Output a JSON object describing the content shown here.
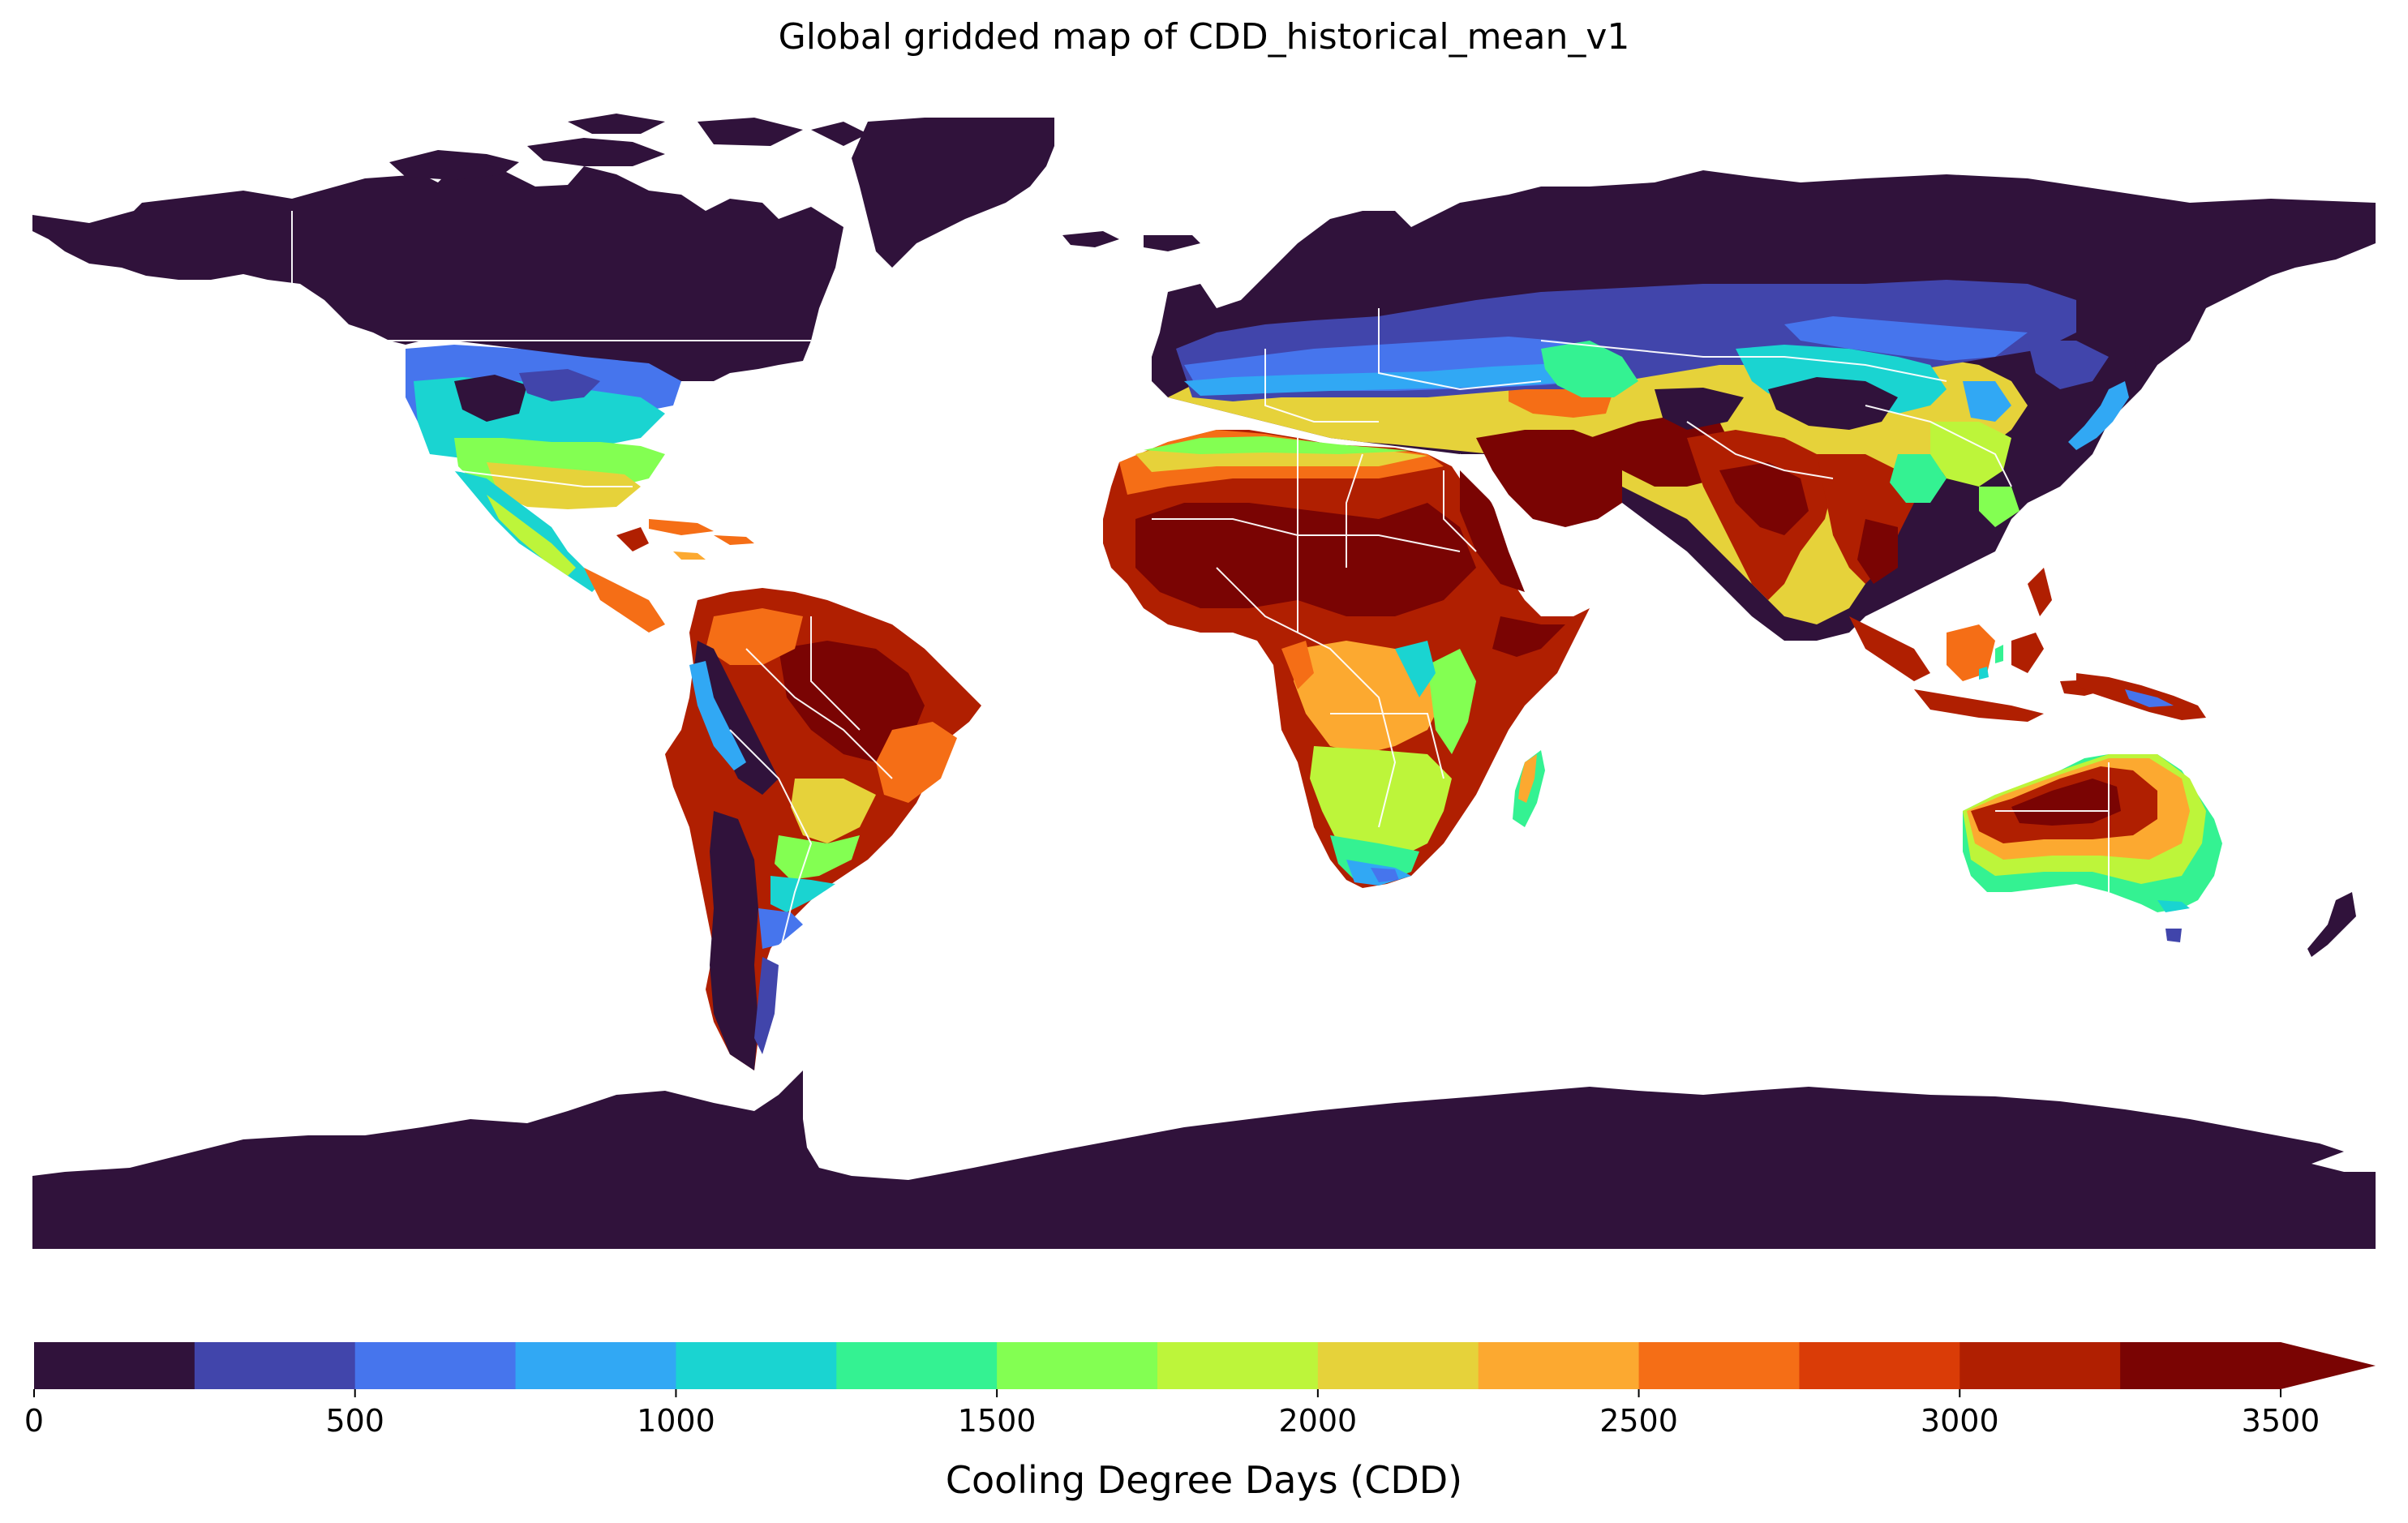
{
  "title": "Global gridded map of CDD_historical_mean_v1",
  "colorbar": {
    "label": "Cooling Degree Days (CDD)",
    "ticks": [
      "0",
      "500",
      "1000",
      "1500",
      "2000",
      "2500",
      "3000",
      "3500"
    ],
    "boundaries": [
      0,
      250,
      500,
      750,
      1000,
      1250,
      1500,
      1750,
      2000,
      2250,
      2500,
      2750,
      3000,
      3250,
      3500
    ],
    "colors": [
      "#30123b",
      "#4145ab",
      "#4675ed",
      "#31a8f4",
      "#1ad4d1",
      "#34f292",
      "#83ff52",
      "#bdf53a",
      "#e6d23a",
      "#fca930",
      "#f56e16",
      "#da3c07",
      "#b01f01",
      "#7a0403"
    ],
    "extend": "max"
  },
  "map": {
    "projection": "equirectangular",
    "ocean_color": "#ffffff",
    "border_color": "#ffffff"
  }
}
